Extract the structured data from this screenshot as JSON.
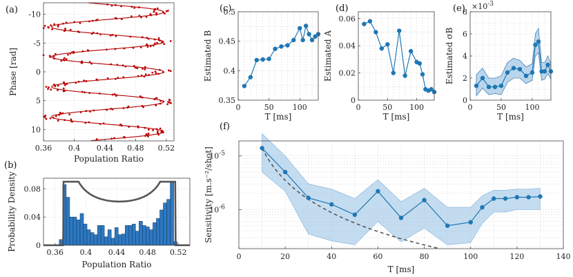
{
  "chart_data": [
    {
      "id": "a",
      "panel_label": "(a)",
      "type": "scatter",
      "xlabel": "Population Ratio",
      "ylabel": "Phase [rad]",
      "xlim": [
        0.36,
        0.53
      ],
      "ylim": [
        -12,
        12
      ],
      "y_reversed": true,
      "xticks": [
        0.36,
        0.4,
        0.44,
        0.48,
        0.52
      ],
      "xtick_labels": [
        "0.36",
        "0.4",
        "0.44",
        "0.48",
        "0.52"
      ],
      "yticks": [
        -10,
        -5,
        0,
        5,
        10
      ],
      "ytick_labels": [
        "-10",
        "-5",
        "0",
        "5",
        "10"
      ],
      "fit": {
        "A": 0.073,
        "B": 0.4435,
        "period": 5.2
      },
      "grid": true,
      "colors": {
        "points": "#c00000",
        "fit": "#b00000"
      }
    },
    {
      "id": "b",
      "panel_label": "(b)",
      "type": "bar",
      "xlabel": "Population Ratio",
      "ylabel": "Probability Density",
      "xlim": [
        0.345,
        0.535
      ],
      "ylim": [
        0,
        0.095
      ],
      "xticks": [
        0.36,
        0.4,
        0.44,
        0.48,
        0.52
      ],
      "xtick_labels": [
        "0.36",
        "0.4",
        "0.44",
        "0.48",
        "0.52"
      ],
      "yticks": [
        0,
        0.04,
        0.08
      ],
      "ytick_labels": [
        "0",
        "0.04",
        "0.08"
      ],
      "bin_start": 0.3655,
      "bin_width": 0.0045,
      "values": [
        0.008,
        0.086,
        0.068,
        0.04,
        0.04,
        0.036,
        0.045,
        0.03,
        0.022,
        0.018,
        0.015,
        0.028,
        0.028,
        0.012,
        0.022,
        0.01,
        0.025,
        0.015,
        0.016,
        0.028,
        0.028,
        0.03,
        0.02,
        0.034,
        0.028,
        0.026,
        0.022,
        0.032,
        0.038,
        0.05,
        0.06,
        0.065,
        0.09,
        0.005
      ],
      "curve": {
        "B": 0.4435,
        "A": 0.073,
        "norm": 0.0142
      },
      "colors": {
        "bars": "#2e78c0",
        "curve": "#555555"
      }
    },
    {
      "id": "c",
      "panel_label": "(c)",
      "type": "line",
      "xlabel": "T [ms]",
      "ylabel": "Estimated B",
      "xlim": [
        0,
        130
      ],
      "ylim": [
        0.35,
        0.5
      ],
      "xticks": [
        0,
        50,
        100
      ],
      "xtick_labels": [
        "0",
        "50",
        "100"
      ],
      "yticks": [
        0.35,
        0.4,
        0.45,
        0.5
      ],
      "ytick_labels": [
        "0.35",
        "0.4",
        "0.45",
        "0.5"
      ],
      "x": [
        10,
        20,
        30,
        40,
        50,
        60,
        70,
        80,
        90,
        100,
        105,
        110,
        115,
        120,
        125,
        130
      ],
      "values": [
        0.374,
        0.389,
        0.418,
        0.419,
        0.42,
        0.437,
        0.441,
        0.443,
        0.452,
        0.472,
        0.452,
        0.476,
        0.462,
        0.452,
        0.458,
        0.462
      ],
      "colors": {
        "line": "#1f77b4"
      }
    },
    {
      "id": "d",
      "panel_label": "(d)",
      "type": "line",
      "xlabel": "T [ms]",
      "ylabel": "Estimated A",
      "xlim": [
        0,
        130
      ],
      "ylim": [
        0,
        0.065
      ],
      "xticks": [
        0,
        50,
        100
      ],
      "xtick_labels": [
        "0",
        "50",
        "100"
      ],
      "yticks": [
        0,
        0.02,
        0.04,
        0.06
      ],
      "ytick_labels": [
        "0",
        "0.02",
        "0.04",
        "0.06"
      ],
      "x": [
        10,
        20,
        30,
        40,
        50,
        60,
        70,
        80,
        90,
        100,
        105,
        110,
        115,
        120,
        125,
        130
      ],
      "values": [
        0.056,
        0.058,
        0.05,
        0.038,
        0.041,
        0.02,
        0.051,
        0.018,
        0.036,
        0.028,
        0.027,
        0.019,
        0.008,
        0.007,
        0.008,
        0.006
      ],
      "colors": {
        "line": "#1f77b4"
      }
    },
    {
      "id": "e",
      "panel_label": "(e)",
      "type": "line",
      "xlabel": "T [ms]",
      "ylabel": "Estimated σB",
      "exponent_label": "×10",
      "exponent_power": "-3",
      "xlim": [
        0,
        130
      ],
      "ylim": [
        0,
        8
      ],
      "xticks": [
        0,
        50,
        100
      ],
      "xtick_labels": [
        "0",
        "50",
        "100"
      ],
      "yticks": [
        0,
        2,
        4,
        6,
        8
      ],
      "ytick_labels": [
        "0",
        "2",
        "4",
        "6",
        "8"
      ],
      "x": [
        10,
        20,
        30,
        40,
        50,
        60,
        70,
        80,
        90,
        100,
        105,
        110,
        115,
        120,
        125,
        130
      ],
      "values": [
        1.3,
        2.0,
        1.2,
        1.2,
        1.3,
        2.5,
        2.9,
        2.8,
        2.2,
        2.5,
        5.0,
        5.3,
        2.6,
        2.6,
        3.2,
        2.6
      ],
      "band_low": [
        0.4,
        1.1,
        0.5,
        0.6,
        0.5,
        1.6,
        2.0,
        2.0,
        1.5,
        1.8,
        4.0,
        4.3,
        1.8,
        1.9,
        2.4,
        1.9
      ],
      "band_high": [
        2.3,
        2.9,
        2.0,
        2.0,
        2.2,
        3.4,
        3.8,
        3.6,
        3.0,
        3.3,
        6.0,
        6.5,
        3.4,
        3.4,
        4.0,
        3.3
      ],
      "colors": {
        "line": "#1f77b4",
        "band": "#9cc5e6"
      }
    },
    {
      "id": "f",
      "panel_label": "(f)",
      "type": "line",
      "xlabel": "T [ms]",
      "ylabel": "Sensitivity [m.s⁻²/shot]",
      "xlim": [
        0,
        140
      ],
      "ylim_log10": [
        -6.73,
        -4.72
      ],
      "y_scale": "log",
      "xticks": [
        0,
        20,
        40,
        60,
        80,
        100,
        120,
        140
      ],
      "xtick_labels": [
        "0",
        "20",
        "40",
        "60",
        "80",
        "100",
        "120",
        "140"
      ],
      "ytick_base": "10",
      "ytick_exponents": [
        "-6",
        "-5"
      ],
      "x": [
        10,
        20,
        30,
        40,
        50,
        60,
        70,
        80,
        90,
        100,
        105,
        110,
        115,
        120,
        125,
        130
      ],
      "values": [
        1.4e-05,
        5e-06,
        1.65e-06,
        1.25e-06,
        8e-07,
        2.2e-06,
        7e-07,
        1.5e-06,
        5e-07,
        5.8e-07,
        1.1e-06,
        1.6e-06,
        1.6e-06,
        1.7e-06,
        1.7e-06,
        1.75e-06
      ],
      "band_low": [
        5e-06,
        2.2e-06,
        3.5e-07,
        2.6e-07,
        2.2e-07,
        6e-07,
        2.5e-07,
        4.5e-07,
        2.2e-07,
        2.4e-07,
        5.5e-07,
        9e-07,
        9e-07,
        1e-06,
        1e-06,
        1e-06
      ],
      "band_high": [
        2.6e-05,
        1e-05,
        3e-06,
        2.4e-06,
        1.6e-06,
        3.6e-06,
        1.4e-06,
        2.5e-06,
        1.1e-06,
        1.1e-06,
        1.8e-06,
        2.3e-06,
        2.3e-06,
        2.4e-06,
        2.4e-06,
        2.5e-06
      ],
      "reference_line": {
        "x0": 10,
        "y0": 1.4e-05,
        "slope_power": -2
      },
      "grid": true,
      "colors": {
        "line": "#1f77b4",
        "band": "#9cc5e6",
        "ref": "#555555"
      }
    }
  ]
}
